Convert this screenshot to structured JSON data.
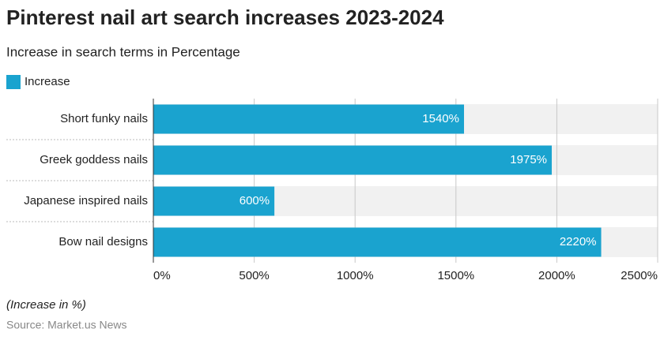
{
  "chart_data": {
    "type": "hbar",
    "title": "Pinterest nail art search increases 2023-2024",
    "subtitle": "Increase in search terms in Percentage",
    "categories": [
      "Short funky nails",
      "Greek goddess nails",
      "Japanese inspired nails",
      "Bow nail designs"
    ],
    "series": [
      {
        "name": "Increase",
        "color": "#1aa3cf",
        "values": [
          1540,
          1975,
          600,
          2220
        ],
        "value_labels": [
          "1540%",
          "1975%",
          "600%",
          "2220%"
        ]
      }
    ],
    "xlim": [
      0,
      2500
    ],
    "xticks": [
      {
        "value": 0,
        "label": "0%"
      },
      {
        "value": 500,
        "label": "500%"
      },
      {
        "value": 1000,
        "label": "1000%"
      },
      {
        "value": 1500,
        "label": "1500%"
      },
      {
        "value": 2000,
        "label": "2000%"
      },
      {
        "value": 2500,
        "label": "2500%"
      }
    ],
    "grid": true,
    "note": "(Increase in %)",
    "source": "Source: Market.us News"
  }
}
